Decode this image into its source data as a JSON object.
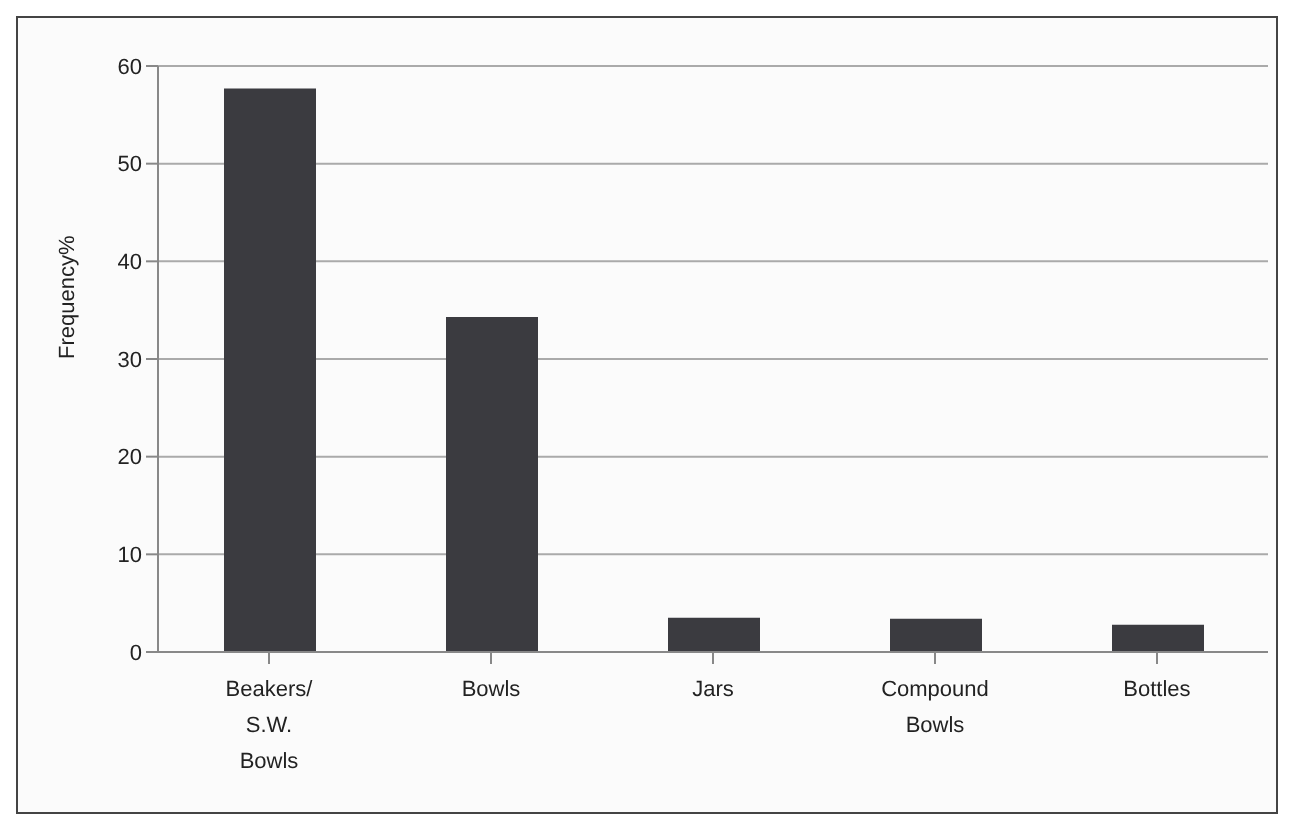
{
  "chart_data": {
    "type": "bar",
    "ylabel": "Frequency%",
    "categories": [
      "Beakers/ S.W. Bowls",
      "Bowls",
      "Jars",
      "Compound Bowls",
      "Bottles"
    ],
    "values": [
      57.7,
      34.3,
      3.5,
      3.4,
      2.8
    ],
    "color": "#3b3b40",
    "ylim": [
      0,
      60
    ],
    "yticks": [
      0,
      10,
      20,
      30,
      40,
      50,
      60
    ],
    "grid": "y"
  }
}
